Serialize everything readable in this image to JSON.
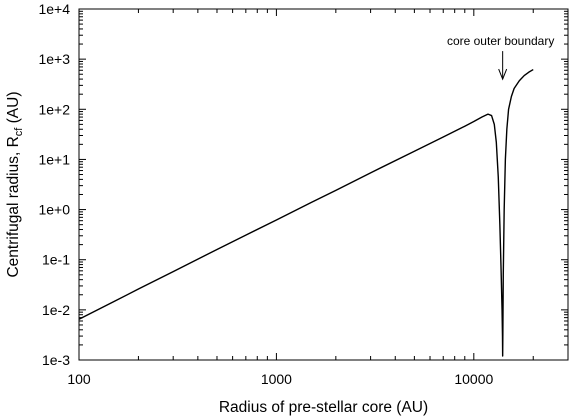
{
  "chart_data": {
    "type": "line",
    "xlabel": "Radius of pre-stellar core (AU)",
    "ylabel": {
      "prefix": "Centrifugal radius, R",
      "subscript": "cf",
      "suffix": " (AU)"
    },
    "x_scale": "log",
    "y_scale": "log",
    "xlim": [
      100,
      30000
    ],
    "ylim": [
      0.001,
      10000
    ],
    "x_ticks": [
      {
        "value": 100,
        "label": "100"
      },
      {
        "value": 1000,
        "label": "1000"
      },
      {
        "value": 10000,
        "label": "10000"
      }
    ],
    "y_ticks": [
      {
        "value": 0.001,
        "label": "1e-3"
      },
      {
        "value": 0.01,
        "label": "1e-2"
      },
      {
        "value": 0.1,
        "label": "1e-1"
      },
      {
        "value": 1,
        "label": "1e+0"
      },
      {
        "value": 10,
        "label": "1e+1"
      },
      {
        "value": 100,
        "label": "1e+2"
      },
      {
        "value": 1000,
        "label": "1e+3"
      },
      {
        "value": 10000,
        "label": "1e+4"
      }
    ],
    "grid": false,
    "legend": "none",
    "series": [
      {
        "color": "#000000",
        "x": [
          100,
          150,
          200,
          300,
          500,
          700,
          1000,
          1500,
          2000,
          3000,
          5000,
          7000,
          9000,
          10000,
          11000,
          11800,
          12300,
          12700,
          13000,
          13300,
          13550,
          13750,
          13900,
          13970,
          14000,
          14030,
          14100,
          14250,
          14450,
          14700,
          15000,
          15500,
          16000,
          17000,
          18000,
          19000,
          20000
        ],
        "y": [
          0.0065,
          0.0146,
          0.026,
          0.058,
          0.16,
          0.31,
          0.62,
          1.38,
          2.42,
          5.4,
          14.6,
          28,
          46,
          57,
          70,
          80,
          75,
          50,
          22,
          4.5,
          0.5,
          0.06,
          0.01,
          0.003,
          0.0012,
          0.003,
          0.05,
          1,
          10,
          40,
          100,
          180,
          260,
          370,
          470,
          550,
          620
        ]
      }
    ],
    "annotations": [
      {
        "text": "core outer boundary",
        "x": 14000,
        "y": 400,
        "arrow": "down"
      }
    ]
  }
}
